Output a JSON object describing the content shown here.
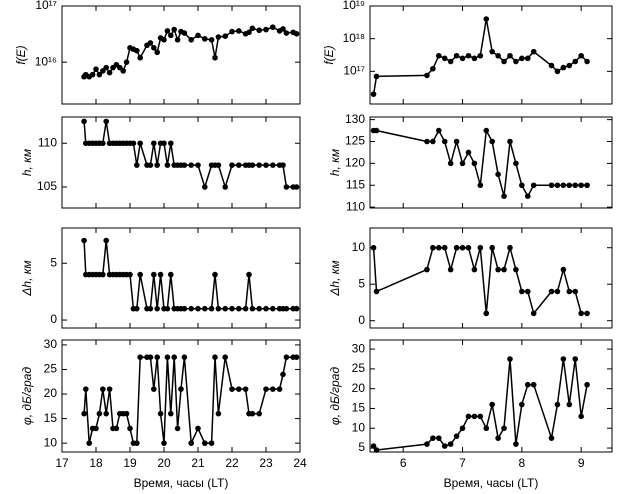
{
  "chart_data": [
    {
      "type": "line",
      "ylabel": "f(E)",
      "log_scale": true,
      "x": [
        17.65,
        17.7,
        17.8,
        17.9,
        18.0,
        18.1,
        18.2,
        18.3,
        18.4,
        18.5,
        18.6,
        18.7,
        18.8,
        18.9,
        19.0,
        19.1,
        19.2,
        19.3,
        19.5,
        19.6,
        19.7,
        19.8,
        19.9,
        20.0,
        20.1,
        20.2,
        20.3,
        20.4,
        20.5,
        20.6,
        20.8,
        21.0,
        21.2,
        21.4,
        21.5,
        21.6,
        21.8,
        22.0,
        22.2,
        22.4,
        22.5,
        22.6,
        22.8,
        23.0,
        23.2,
        23.4,
        23.5,
        23.6,
        23.8,
        23.9
      ],
      "series": [
        {
          "color": "#000000",
          "values": [
            5500000000000000.0,
            6000000000000000.0,
            5500000000000000.0,
            6000000000000000.0,
            7500000000000000.0,
            6000000000000000.0,
            7000000000000000.0,
            8000000000000000.0,
            6500000000000000.0,
            8000000000000000.0,
            9000000000000000.0,
            8000000000000000.0,
            7000000000000000.0,
            1e+16,
            1.8e+16,
            1.7e+16,
            1.6e+16,
            1.2e+16,
            2e+16,
            2.2e+16,
            1.8e+16,
            1.5e+16,
            2.7e+16,
            2.5e+16,
            3.6e+16,
            3e+16,
            3.8e+16,
            2.5e+16,
            3.5e+16,
            3.3e+16,
            2.5e+16,
            3e+16,
            2.6e+16,
            2.5e+16,
            1.2e+16,
            2.8e+16,
            2.9e+16,
            3.5e+16,
            3.6e+16,
            3.2e+16,
            3.4e+16,
            4e+16,
            3.7e+16,
            3.8e+16,
            4.2e+16,
            3.6e+16,
            3.9e+16,
            3.3e+16,
            3.4e+16,
            3.2e+16
          ]
        }
      ],
      "xlim": [
        17,
        24
      ],
      "xticks": [
        17,
        18,
        19,
        20,
        21,
        22,
        23,
        24
      ],
      "ylim": [
        1800000000000000.0,
        1e+17
      ],
      "yticks": [
        {
          "value": 1e+16,
          "label": "10¹⁶"
        },
        {
          "value": 1e+17,
          "label": "10¹⁷"
        }
      ]
    },
    {
      "type": "line",
      "ylabel": "h, км",
      "x": [
        17.65,
        17.7,
        17.8,
        17.9,
        18.0,
        18.1,
        18.2,
        18.3,
        18.4,
        18.5,
        18.6,
        18.7,
        18.8,
        18.9,
        19.0,
        19.1,
        19.2,
        19.3,
        19.5,
        19.6,
        19.7,
        19.8,
        19.9,
        20.0,
        20.1,
        20.2,
        20.3,
        20.4,
        20.5,
        20.6,
        20.8,
        21.0,
        21.2,
        21.4,
        21.5,
        21.6,
        21.8,
        22.0,
        22.2,
        22.4,
        22.5,
        22.6,
        22.8,
        23.0,
        23.2,
        23.4,
        23.5,
        23.6,
        23.8,
        23.9
      ],
      "series": [
        {
          "color": "#000000",
          "values": [
            112.5,
            110,
            110,
            110,
            110,
            110,
            110,
            112.5,
            110,
            110,
            110,
            110,
            110,
            110,
            110,
            110,
            107.5,
            110,
            107.5,
            107.5,
            110,
            107.5,
            110,
            110,
            107.5,
            110,
            107.5,
            107.5,
            107.5,
            107.5,
            107.5,
            107.5,
            105,
            107.5,
            107.5,
            107.5,
            105,
            107.5,
            107.5,
            107.5,
            107.5,
            107.5,
            107.5,
            107.5,
            107.5,
            107.5,
            107.5,
            105,
            105,
            105
          ]
        }
      ],
      "xlim": [
        17,
        24
      ],
      "xticks": [
        17,
        18,
        19,
        20,
        21,
        22,
        23,
        24
      ],
      "ylim": [
        102.6,
        113
      ],
      "yticks": [
        105,
        110
      ]
    },
    {
      "type": "line",
      "ylabel": "Δh, км",
      "x": [
        17.65,
        17.7,
        17.8,
        17.9,
        18.0,
        18.1,
        18.2,
        18.3,
        18.4,
        18.5,
        18.6,
        18.7,
        18.8,
        18.9,
        19.0,
        19.1,
        19.2,
        19.3,
        19.5,
        19.6,
        19.7,
        19.8,
        19.9,
        20.0,
        20.1,
        20.2,
        20.3,
        20.4,
        20.5,
        20.6,
        20.8,
        21.0,
        21.2,
        21.4,
        21.5,
        21.6,
        21.8,
        22.0,
        22.2,
        22.4,
        22.5,
        22.6,
        22.8,
        23.0,
        23.2,
        23.4,
        23.5,
        23.6,
        23.8,
        23.9
      ],
      "series": [
        {
          "color": "#000000",
          "values": [
            7,
            4,
            4,
            4,
            4,
            4,
            4,
            7,
            4,
            4,
            4,
            4,
            4,
            4,
            4,
            1,
            1,
            4,
            1,
            1,
            4,
            1,
            4,
            1,
            1,
            4,
            1,
            1,
            1,
            1,
            1,
            1,
            1,
            1,
            4,
            1,
            1,
            1,
            1,
            1,
            4,
            1,
            1,
            1,
            1,
            1,
            1,
            1,
            1,
            1
          ]
        }
      ],
      "xlim": [
        17,
        24
      ],
      "xticks": [
        17,
        18,
        19,
        20,
        21,
        22,
        23,
        24
      ],
      "ylim": [
        -0.7,
        8.1
      ],
      "yticks": [
        0,
        5
      ]
    },
    {
      "type": "line",
      "ylabel": "φ, дБ/град",
      "xlabel": "Время, часы (LT)",
      "x": [
        17.65,
        17.7,
        17.8,
        17.9,
        18.0,
        18.1,
        18.2,
        18.3,
        18.4,
        18.5,
        18.6,
        18.7,
        18.8,
        18.9,
        19.0,
        19.1,
        19.2,
        19.3,
        19.5,
        19.6,
        19.7,
        19.8,
        19.9,
        20.0,
        20.1,
        20.2,
        20.3,
        20.4,
        20.5,
        20.6,
        20.8,
        21.0,
        21.2,
        21.4,
        21.5,
        21.6,
        21.8,
        22.0,
        22.2,
        22.4,
        22.5,
        22.6,
        22.8,
        23.0,
        23.2,
        23.4,
        23.5,
        23.6,
        23.8,
        23.9
      ],
      "series": [
        {
          "color": "#000000",
          "values": [
            16,
            21,
            10,
            13,
            13,
            16,
            21,
            16,
            21,
            13,
            13,
            16,
            16,
            16,
            13,
            10,
            10,
            27.5,
            27.5,
            27.5,
            21,
            27.5,
            16,
            10,
            27.5,
            16,
            27.5,
            13,
            21,
            27.5,
            10,
            13,
            10,
            10,
            27.5,
            16,
            27.5,
            21,
            21,
            21,
            16,
            16,
            16,
            21,
            21,
            21,
            24,
            27.5,
            27.5,
            27.5
          ]
        }
      ],
      "xlim": [
        17,
        24
      ],
      "xticks": [
        17,
        18,
        19,
        20,
        21,
        22,
        23,
        24
      ],
      "ylim": [
        8.2,
        31
      ],
      "yticks": [
        10,
        15,
        20,
        25,
        30
      ]
    },
    {
      "type": "line",
      "ylabel": "f(E)",
      "log_scale": true,
      "x": [
        5.5,
        5.55,
        6.4,
        6.5,
        6.6,
        6.7,
        6.8,
        6.9,
        7.0,
        7.1,
        7.2,
        7.3,
        7.4,
        7.5,
        7.6,
        7.7,
        7.8,
        7.9,
        8.0,
        8.1,
        8.2,
        8.5,
        8.6,
        8.7,
        8.8,
        8.9,
        9.0,
        9.1
      ],
      "series": [
        {
          "color": "#000000",
          "values": [
            2e+16,
            7e+16,
            7.5e+16,
            1.2e+17,
            3e+17,
            2.5e+17,
            2e+17,
            3e+17,
            2.5e+17,
            3e+17,
            2.5e+17,
            3e+17,
            4e+18,
            4e+17,
            3e+17,
            2e+17,
            3e+17,
            2e+17,
            2.5e+17,
            2.5e+17,
            4e+17,
            1.5e+17,
            1e+17,
            1.3e+17,
            1.5e+17,
            2e+17,
            3e+17,
            2e+17
          ]
        }
      ],
      "xlim": [
        5.44,
        9.52
      ],
      "xticks": [
        6,
        7,
        8,
        9
      ],
      "ylim": [
        1e+16,
        1e+19
      ],
      "yticks": [
        {
          "value": 1e+17,
          "label": "10¹⁷"
        },
        {
          "value": 1e+18,
          "label": "10¹⁸"
        },
        {
          "value": 1e+19,
          "label": "10¹⁹"
        }
      ]
    },
    {
      "type": "line",
      "ylabel": "h, км",
      "x": [
        5.5,
        5.55,
        6.4,
        6.5,
        6.6,
        6.7,
        6.8,
        6.9,
        7.0,
        7.1,
        7.2,
        7.3,
        7.4,
        7.5,
        7.6,
        7.7,
        7.8,
        7.9,
        8.0,
        8.1,
        8.2,
        8.5,
        8.6,
        8.7,
        8.8,
        8.9,
        9.0,
        9.1
      ],
      "series": [
        {
          "color": "#000000",
          "values": [
            127.5,
            127.5,
            125,
            125,
            127.5,
            125,
            120,
            125,
            120,
            122.5,
            120,
            115,
            127.5,
            125,
            117.5,
            112.5,
            125,
            120,
            115,
            112.5,
            115,
            115,
            115,
            115,
            115,
            115,
            115,
            115
          ]
        }
      ],
      "xlim": [
        5.44,
        9.52
      ],
      "xticks": [
        6,
        7,
        8,
        9
      ],
      "ylim": [
        109.8,
        130.6
      ],
      "yticks": [
        110,
        115,
        120,
        125,
        130
      ]
    },
    {
      "type": "line",
      "ylabel": "Δh, км",
      "x": [
        5.5,
        5.55,
        6.4,
        6.5,
        6.6,
        6.7,
        6.8,
        6.9,
        7.0,
        7.1,
        7.2,
        7.3,
        7.4,
        7.5,
        7.6,
        7.7,
        7.8,
        7.9,
        8.0,
        8.1,
        8.2,
        8.5,
        8.6,
        8.7,
        8.8,
        8.9,
        9.0,
        9.1
      ],
      "series": [
        {
          "color": "#000000",
          "values": [
            10,
            4,
            7,
            10,
            10,
            10,
            7,
            10,
            10,
            10,
            7,
            10,
            1,
            10,
            7,
            7,
            10,
            7,
            4,
            4,
            1,
            4,
            4,
            7,
            4,
            4,
            1,
            1
          ]
        }
      ],
      "xlim": [
        5.44,
        9.52
      ],
      "xticks": [
        6,
        7,
        8,
        9
      ],
      "ylim": [
        -1,
        12.7
      ],
      "yticks": [
        0,
        5,
        10
      ]
    },
    {
      "type": "line",
      "ylabel": "φ, дБ/град",
      "xlabel": "Время, часы (LT)",
      "x": [
        5.5,
        5.55,
        6.4,
        6.5,
        6.6,
        6.7,
        6.8,
        6.9,
        7.0,
        7.1,
        7.2,
        7.3,
        7.4,
        7.5,
        7.6,
        7.7,
        7.8,
        7.9,
        8.0,
        8.1,
        8.2,
        8.5,
        8.6,
        8.7,
        8.8,
        8.9,
        9.0,
        9.1
      ],
      "series": [
        {
          "color": "#000000",
          "values": [
            5.5,
            4.5,
            6,
            7.5,
            7.5,
            5.5,
            6,
            8,
            10,
            13,
            13,
            13,
            10,
            16,
            7.5,
            10,
            27.5,
            6,
            16,
            21,
            21,
            7.5,
            16,
            27.5,
            16,
            27.5,
            13,
            21
          ]
        }
      ],
      "xlim": [
        5.44,
        9.52
      ],
      "xticks": [
        6,
        7,
        8,
        9
      ],
      "ylim": [
        4,
        32.3
      ],
      "yticks": [
        5,
        10,
        15,
        20,
        25,
        30
      ]
    }
  ]
}
